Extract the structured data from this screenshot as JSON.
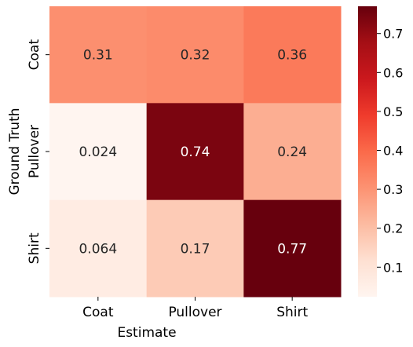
{
  "chart_data": {
    "type": "heatmap",
    "title": "",
    "xlabel": "Estimate",
    "ylabel": "Ground Truth",
    "x_categories": [
      "Coat",
      "Pullover",
      "Shirt"
    ],
    "y_categories": [
      "Coat",
      "Pullover",
      "Shirt"
    ],
    "values": [
      [
        0.31,
        0.32,
        0.36
      ],
      [
        0.024,
        0.74,
        0.24
      ],
      [
        0.064,
        0.17,
        0.77
      ]
    ],
    "value_labels": [
      [
        "0.31",
        "0.32",
        "0.36"
      ],
      [
        "0.024",
        "0.74",
        "0.24"
      ],
      [
        "0.064",
        "0.17",
        "0.77"
      ]
    ],
    "colormap": "Reds",
    "color_range": [
      0.024,
      0.77
    ],
    "colorbar_ticks": [
      0.1,
      0.2,
      0.3,
      0.4,
      0.5,
      0.6,
      0.7
    ],
    "colorbar_tick_labels": [
      "0.1",
      "0.2",
      "0.3",
      "0.4",
      "0.5",
      "0.6",
      "0.7"
    ]
  }
}
